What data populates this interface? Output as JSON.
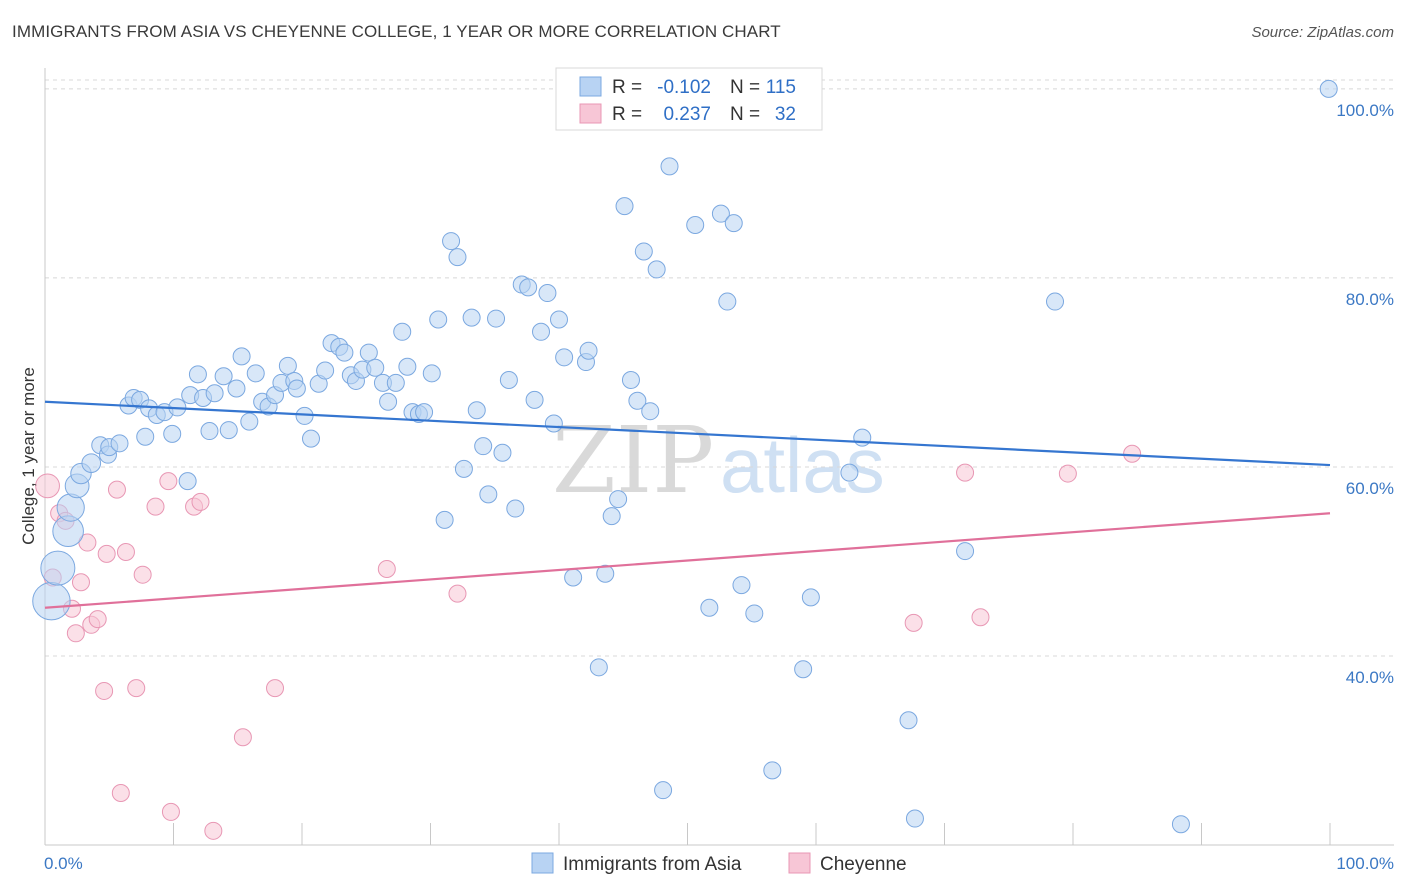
{
  "title": "IMMIGRANTS FROM ASIA VS CHEYENNE COLLEGE, 1 YEAR OR MORE CORRELATION CHART",
  "source": "Source: ZipAtlas.com",
  "watermark": {
    "zip": "ZIP",
    "atlas": "atlas"
  },
  "colors": {
    "blue": "#3576d0",
    "blue_fill": "#b8d3f3",
    "blue_stroke": "#7ba8e0",
    "pink": "#e0709a",
    "pink_fill": "#f7c6d6",
    "pink_stroke": "#e897b4",
    "grid": "#d8d8d8",
    "tick_text": "#3b78c4"
  },
  "legend": {
    "rows": [
      {
        "r_label": "R =",
        "r_value": "-0.102",
        "n_label": "N =",
        "n_value": "115"
      },
      {
        "r_label": "R =",
        "r_value": "0.237",
        "n_label": "N =",
        "n_value": "32"
      }
    ]
  },
  "bottom_legend": [
    "Immigrants from Asia",
    "Cheyenne"
  ],
  "chart_data": {
    "type": "scatter",
    "title": "IMMIGRANTS FROM ASIA VS CHEYENNE COLLEGE, 1 YEAR OR MORE CORRELATION CHART",
    "xlabel": "",
    "ylabel": "College, 1 year or more",
    "xlim": [
      0,
      100
    ],
    "ylim": [
      20,
      102
    ],
    "x_tick_labels": [
      "0.0%",
      "100.0%"
    ],
    "y_ticks": [
      40,
      60,
      80,
      100
    ],
    "y_tick_labels": [
      "40.0%",
      "60.0%",
      "80.0%",
      "100.0%"
    ],
    "grid": true,
    "series": [
      {
        "name": "Immigrants from Asia",
        "color": "blue",
        "R": -0.102,
        "N": 115,
        "trend": {
          "x": [
            0,
            100
          ],
          "y": [
            66.9,
            60.2
          ]
        },
        "points": [
          [
            0.5,
            45.8,
            2.2
          ],
          [
            1,
            49.3,
            2.0
          ],
          [
            1.8,
            53.2,
            1.8
          ],
          [
            2,
            55.7,
            1.6
          ],
          [
            2.5,
            58,
            1.4
          ],
          [
            2.8,
            59.3,
            1.2
          ],
          [
            3.6,
            60.4,
            1.1
          ],
          [
            4.3,
            62.3,
            1.0
          ],
          [
            4.9,
            61.3,
            1.0
          ],
          [
            5,
            62.1,
            1.0
          ],
          [
            5.8,
            62.5,
            1.0
          ],
          [
            6.5,
            66.5,
            1.0
          ],
          [
            6.9,
            67.3,
            1.0
          ],
          [
            7.4,
            67.1,
            1.0
          ],
          [
            7.8,
            63.2,
            1.0
          ],
          [
            8.1,
            66.2,
            1.0
          ],
          [
            8.7,
            65.5,
            1.0
          ],
          [
            9.3,
            65.8,
            1.0
          ],
          [
            9.9,
            63.5,
            1.0
          ],
          [
            10.3,
            66.3,
            1.0
          ],
          [
            11.1,
            58.5,
            1.0
          ],
          [
            11.3,
            67.6,
            1.0
          ],
          [
            11.9,
            69.8,
            1.0
          ],
          [
            12.3,
            67.3,
            1.0
          ],
          [
            12.8,
            63.8,
            1.0
          ],
          [
            13.2,
            67.8,
            1.0
          ],
          [
            13.9,
            69.6,
            1.0
          ],
          [
            14.3,
            63.9,
            1.0
          ],
          [
            14.9,
            68.3,
            1.0
          ],
          [
            15.3,
            71.7,
            1.0
          ],
          [
            15.9,
            64.8,
            1.0
          ],
          [
            16.4,
            69.9,
            1.0
          ],
          [
            16.9,
            66.9,
            1.0
          ],
          [
            17.4,
            66.4,
            1.0
          ],
          [
            17.9,
            67.6,
            1.0
          ],
          [
            18.4,
            68.9,
            1.0
          ],
          [
            18.9,
            70.7,
            1.0
          ],
          [
            19.4,
            69.1,
            1.0
          ],
          [
            19.6,
            68.3,
            1.0
          ],
          [
            20.2,
            65.4,
            1.0
          ],
          [
            20.7,
            63,
            1.0
          ],
          [
            21.3,
            68.8,
            1.0
          ],
          [
            21.8,
            70.2,
            1.0
          ],
          [
            22.3,
            73.1,
            1.0
          ],
          [
            22.9,
            72.7,
            1.0
          ],
          [
            23.3,
            72.1,
            1.0
          ],
          [
            23.8,
            69.7,
            1.0
          ],
          [
            24.2,
            69.1,
            1.0
          ],
          [
            24.7,
            70.3,
            1.0
          ],
          [
            25.2,
            72.1,
            1.0
          ],
          [
            25.7,
            70.5,
            1.0
          ],
          [
            26.3,
            68.9,
            1.0
          ],
          [
            26.7,
            66.9,
            1.0
          ],
          [
            27.3,
            68.9,
            1.0
          ],
          [
            27.8,
            74.3,
            1.0
          ],
          [
            28.2,
            70.6,
            1.0
          ],
          [
            28.6,
            65.8,
            1.0
          ],
          [
            29.1,
            65.6,
            1.0
          ],
          [
            29.5,
            65.8,
            1.0
          ],
          [
            30.1,
            69.9,
            1.0
          ],
          [
            30.6,
            75.6,
            1.0
          ],
          [
            31.1,
            54.4,
            1.0
          ],
          [
            31.6,
            83.9,
            1.0
          ],
          [
            32.1,
            82.2,
            1.0
          ],
          [
            32.6,
            59.8,
            1.0
          ],
          [
            33.2,
            75.8,
            1.0
          ],
          [
            33.6,
            66,
            1.0
          ],
          [
            34.1,
            62.2,
            1.0
          ],
          [
            34.5,
            57.1,
            1.0
          ],
          [
            35.1,
            75.7,
            1.0
          ],
          [
            35.6,
            61.5,
            1.0
          ],
          [
            36.1,
            69.2,
            1.0
          ],
          [
            36.6,
            55.6,
            1.0
          ],
          [
            37.1,
            79.3,
            1.0
          ],
          [
            37.6,
            79,
            1.0
          ],
          [
            38.1,
            67.1,
            1.0
          ],
          [
            38.6,
            74.3,
            1.0
          ],
          [
            39.1,
            78.4,
            1.0
          ],
          [
            39.6,
            64.6,
            1.0
          ],
          [
            40,
            75.6,
            1.0
          ],
          [
            40.4,
            71.6,
            1.0
          ],
          [
            41.1,
            48.3,
            1.0
          ],
          [
            42.1,
            71.1,
            1.0
          ],
          [
            42.3,
            72.3,
            1.0
          ],
          [
            43.1,
            38.8,
            1.0
          ],
          [
            43.6,
            48.7,
            1.0
          ],
          [
            44.1,
            54.8,
            1.0
          ],
          [
            44.6,
            56.6,
            1.0
          ],
          [
            45.1,
            87.6,
            1.0
          ],
          [
            45.6,
            69.2,
            1.0
          ],
          [
            46.1,
            67,
            1.0
          ],
          [
            46.6,
            82.8,
            1.0
          ],
          [
            47.1,
            65.9,
            1.0
          ],
          [
            47.6,
            80.9,
            1.0
          ],
          [
            48.1,
            25.8,
            1.0
          ],
          [
            48.6,
            91.8,
            1.0
          ],
          [
            50.6,
            85.6,
            1.0
          ],
          [
            51.7,
            45.1,
            1.0
          ],
          [
            52.6,
            86.8,
            1.0
          ],
          [
            53.1,
            77.5,
            1.0
          ],
          [
            53.6,
            85.8,
            1.0
          ],
          [
            54.2,
            47.5,
            1.0
          ],
          [
            55.2,
            44.5,
            1.0
          ],
          [
            56.6,
            27.9,
            1.0
          ],
          [
            59,
            38.6,
            1.0
          ],
          [
            59.6,
            46.2,
            1.0
          ],
          [
            62.6,
            59.4,
            1.0
          ],
          [
            63.6,
            63.1,
            1.0
          ],
          [
            67.2,
            33.2,
            1.0
          ],
          [
            67.7,
            22.8,
            1.0
          ],
          [
            71.6,
            51.1,
            1.0
          ],
          [
            78.6,
            77.5,
            1.0
          ],
          [
            88.4,
            22.2,
            1.0
          ],
          [
            99.9,
            100,
            1.0
          ]
        ]
      },
      {
        "name": "Cheyenne",
        "color": "pink",
        "R": 0.237,
        "N": 32,
        "trend": {
          "x": [
            0,
            100
          ],
          "y": [
            45.1,
            55.1
          ]
        },
        "points": [
          [
            0.2,
            58,
            1.4
          ],
          [
            0.6,
            48.3,
            1.0
          ],
          [
            1.1,
            55.1,
            1.0
          ],
          [
            1.6,
            54.3,
            1.0
          ],
          [
            2.1,
            45,
            1.0
          ],
          [
            2.4,
            42.4,
            1.0
          ],
          [
            2.8,
            47.8,
            1.0
          ],
          [
            3.3,
            52,
            1.0
          ],
          [
            3.6,
            43.3,
            1.0
          ],
          [
            4.1,
            43.9,
            1.0
          ],
          [
            4.6,
            36.3,
            1.0
          ],
          [
            4.8,
            50.8,
            1.0
          ],
          [
            5.6,
            57.6,
            1.0
          ],
          [
            5.9,
            25.5,
            1.0
          ],
          [
            6.3,
            51,
            1.0
          ],
          [
            7.1,
            36.6,
            1.0
          ],
          [
            7.6,
            48.6,
            1.0
          ],
          [
            8.6,
            55.8,
            1.0
          ],
          [
            9.6,
            58.5,
            1.0
          ],
          [
            9.8,
            23.5,
            1.0
          ],
          [
            11.6,
            55.8,
            1.0
          ],
          [
            12.1,
            56.3,
            1.0
          ],
          [
            13.1,
            21.5,
            1.0
          ],
          [
            15.4,
            31.4,
            1.0
          ],
          [
            17.9,
            36.6,
            1.0
          ],
          [
            26.6,
            49.2,
            1.0
          ],
          [
            32.1,
            46.6,
            1.0
          ],
          [
            67.6,
            43.5,
            1.0
          ],
          [
            71.6,
            59.4,
            1.0
          ],
          [
            72.8,
            44.1,
            1.0
          ],
          [
            79.6,
            59.3,
            1.0
          ],
          [
            84.6,
            61.4,
            1.0
          ]
        ]
      }
    ]
  }
}
